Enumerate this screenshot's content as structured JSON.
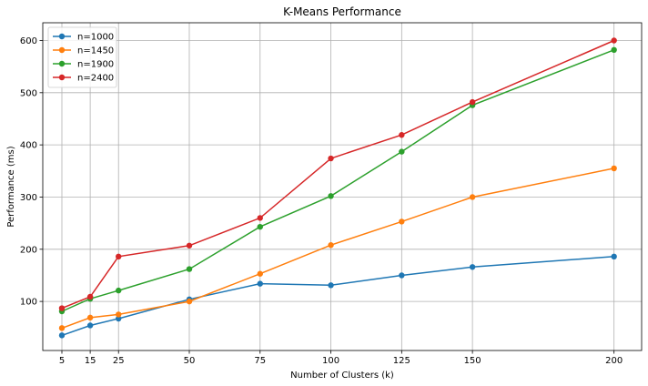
{
  "chart_data": {
    "type": "line",
    "title": "K-Means Performance",
    "xlabel": "Number of Clusters (k)",
    "ylabel": "Performance (ms)",
    "x": [
      5,
      15,
      25,
      50,
      75,
      100,
      125,
      150,
      200
    ],
    "xticks": [
      5,
      15,
      25,
      50,
      75,
      100,
      125,
      150,
      200
    ],
    "yticks": [
      100,
      200,
      300,
      400,
      500,
      600
    ],
    "xlim": [
      -1.75,
      209.75
    ],
    "ylim": [
      6,
      634
    ],
    "grid": true,
    "legend_position": "top-left",
    "series": [
      {
        "name": "n=1000",
        "color": "#1f77b4",
        "values": [
          35,
          54,
          67,
          104,
          134,
          131,
          150,
          166,
          186
        ]
      },
      {
        "name": "n=1450",
        "color": "#ff7f0e",
        "values": [
          49,
          69,
          75,
          100,
          153,
          208,
          253,
          300,
          355
        ]
      },
      {
        "name": "n=1900",
        "color": "#2ca02c",
        "values": [
          81,
          105,
          121,
          162,
          243,
          302,
          387,
          476,
          582
        ]
      },
      {
        "name": "n=2400",
        "color": "#d62728",
        "values": [
          87,
          109,
          186,
          207,
          260,
          374,
          419,
          482,
          600
        ]
      }
    ]
  }
}
